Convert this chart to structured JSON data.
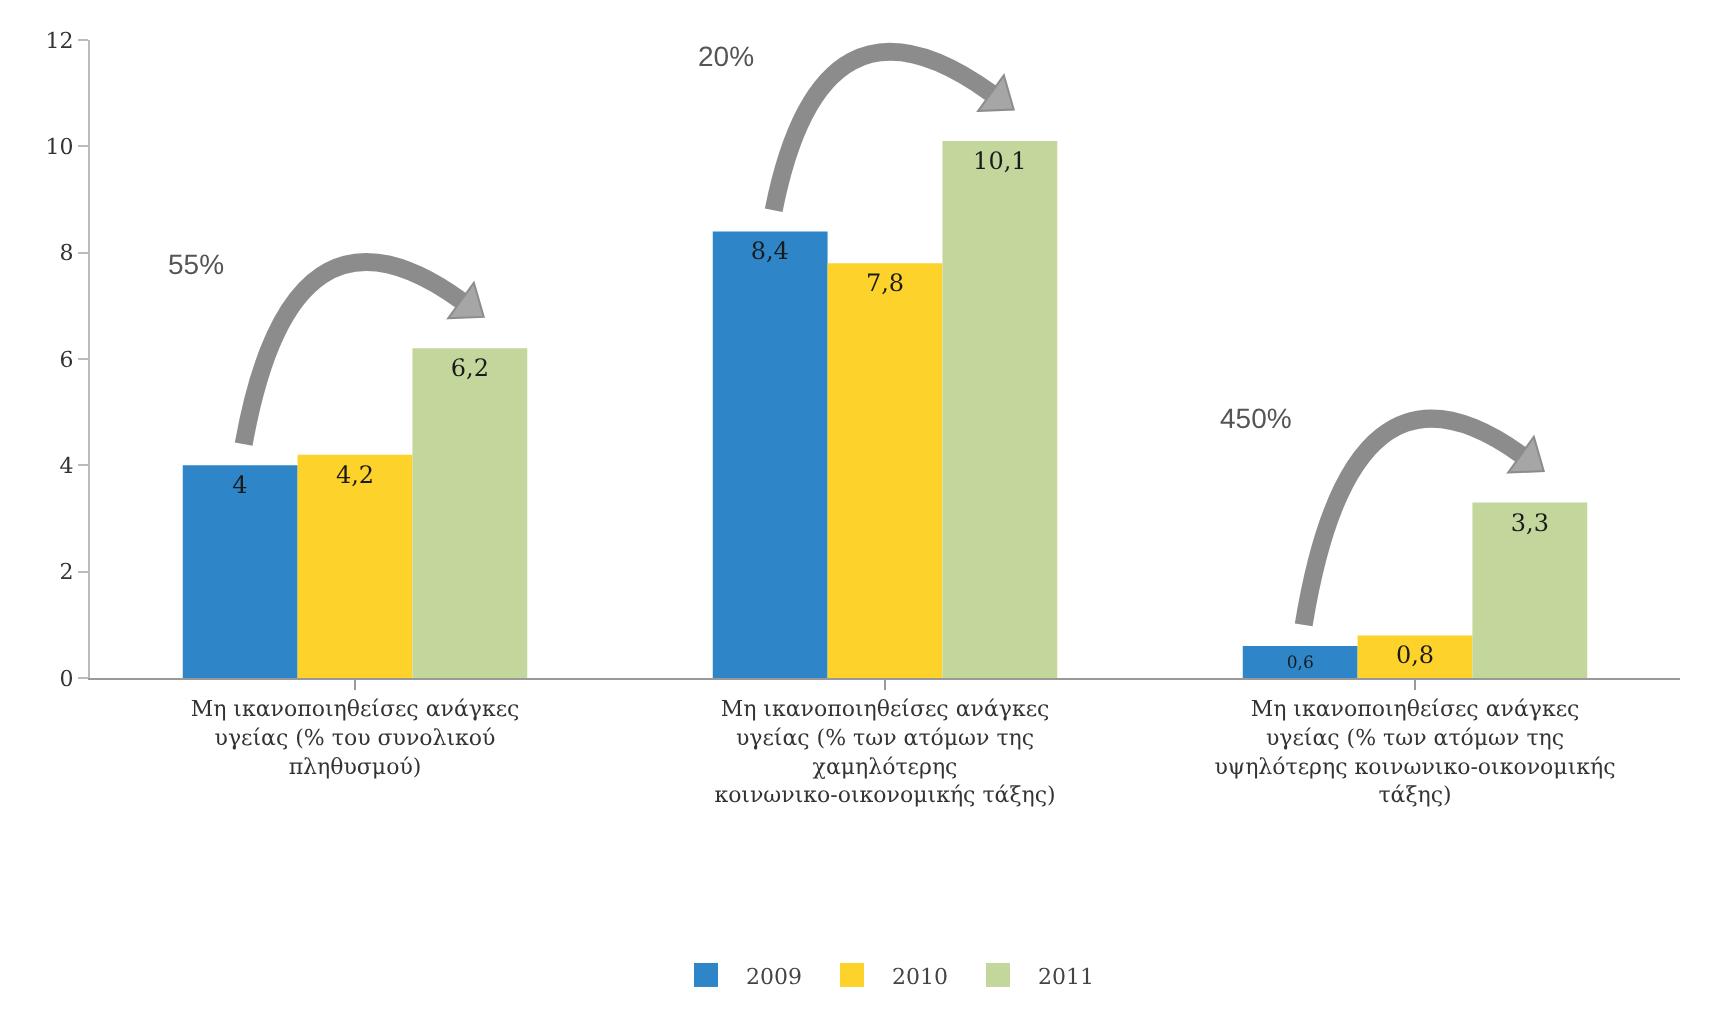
{
  "chart_data": {
    "type": "bar",
    "categories": [
      "Μη ικανοποιηθείσες ανάγκες υγείας (% του συνολικού πληθυσμού)",
      "Μη ικανοποιηθείσες ανάγκες υγείας (% των ατόμων της χαμηλότερης κοινωνικο-οικονομικής τάξης)",
      "Μη ικανοποιηθείσες ανάγκες υγείας (% των ατόμων της υψηλότερης κοινωνικο-οικονομικής τάξης)"
    ],
    "series": [
      {
        "name": "2009",
        "color": "#2e86c8",
        "values": [
          4,
          8.4,
          0.6
        ],
        "value_labels": [
          "4",
          "8,4",
          "0,6"
        ]
      },
      {
        "name": "2010",
        "color": "#fdd22a",
        "values": [
          4.2,
          7.8,
          0.8
        ],
        "value_labels": [
          "4,2",
          "7,8",
          "0,8"
        ]
      },
      {
        "name": "2011",
        "color": "#c3d69b",
        "values": [
          6.2,
          10.1,
          3.3
        ],
        "value_labels": [
          "6,2",
          "10,1",
          "3,3"
        ]
      }
    ],
    "annotations": [
      "55%",
      "20%",
      "450%"
    ],
    "ylim": [
      0,
      12
    ],
    "yticks": [
      0,
      2,
      4,
      6,
      8,
      10,
      12
    ],
    "grid": false,
    "legend": "bottom"
  }
}
